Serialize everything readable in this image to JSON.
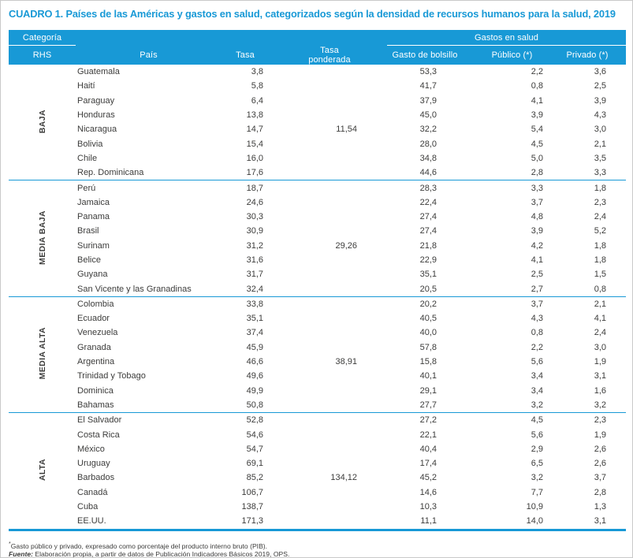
{
  "title": "CUADRO 1. Países de las Américas y gastos en salud, categorizados según la densidad de recursos humanos para la salud, 2019",
  "colors": {
    "accent": "#1899D6",
    "header_text": "#FFFFFF",
    "body_text": "#3C3C3B",
    "page_border": "#C9C9C9"
  },
  "table": {
    "header": {
      "category_label": "Categoría",
      "rhs_label": "RHS",
      "gastos_group_label": "Gastos en salud",
      "pais_label": "País",
      "tasa_label": "Tasa",
      "tasa_ponderada_label": "Tasa ponderada",
      "gasto_bolsillo_label": "Gasto de bolsillo",
      "publico_label": "Público (*)",
      "privado_label": "Privado (*)"
    },
    "groups": [
      {
        "label": "BAJA",
        "rows": [
          {
            "pais": "Guatemala",
            "tasa": "3,8",
            "tasa_ponderada": "",
            "gasto_bolsillo": "53,3",
            "publico": "2,2",
            "privado": "3,6"
          },
          {
            "pais": "Haití",
            "tasa": "5,8",
            "tasa_ponderada": "",
            "gasto_bolsillo": "41,7",
            "publico": "0,8",
            "privado": "2,5"
          },
          {
            "pais": "Paraguay",
            "tasa": "6,4",
            "tasa_ponderada": "",
            "gasto_bolsillo": "37,9",
            "publico": "4,1",
            "privado": "3,9"
          },
          {
            "pais": "Honduras",
            "tasa": "13,8",
            "tasa_ponderada": "",
            "gasto_bolsillo": "45,0",
            "publico": "3,9",
            "privado": "4,3"
          },
          {
            "pais": "Nicaragua",
            "tasa": "14,7",
            "tasa_ponderada": "11,54",
            "gasto_bolsillo": "32,2",
            "publico": "5,4",
            "privado": "3,0"
          },
          {
            "pais": "Bolivia",
            "tasa": "15,4",
            "tasa_ponderada": "",
            "gasto_bolsillo": "28,0",
            "publico": "4,5",
            "privado": "2,1"
          },
          {
            "pais": "Chile",
            "tasa": "16,0",
            "tasa_ponderada": "",
            "gasto_bolsillo": "34,8",
            "publico": "5,0",
            "privado": "3,5"
          },
          {
            "pais": "Rep. Dominicana",
            "tasa": "17,6",
            "tasa_ponderada": "",
            "gasto_bolsillo": "44,6",
            "publico": "2,8",
            "privado": "3,3"
          }
        ]
      },
      {
        "label": "MEDIA BAJA",
        "rows": [
          {
            "pais": "Perú",
            "tasa": "18,7",
            "tasa_ponderada": "",
            "gasto_bolsillo": "28,3",
            "publico": "3,3",
            "privado": "1,8"
          },
          {
            "pais": "Jamaica",
            "tasa": "24,6",
            "tasa_ponderada": "",
            "gasto_bolsillo": "22,4",
            "publico": "3,7",
            "privado": "2,3"
          },
          {
            "pais": "Panama",
            "tasa": "30,3",
            "tasa_ponderada": "",
            "gasto_bolsillo": "27,4",
            "publico": "4,8",
            "privado": "2,4"
          },
          {
            "pais": "Brasil",
            "tasa": "30,9",
            "tasa_ponderada": "",
            "gasto_bolsillo": "27,4",
            "publico": "3,9",
            "privado": "5,2"
          },
          {
            "pais": "Surinam",
            "tasa": "31,2",
            "tasa_ponderada": "29,26",
            "gasto_bolsillo": "21,8",
            "publico": "4,2",
            "privado": "1,8"
          },
          {
            "pais": "Belice",
            "tasa": "31,6",
            "tasa_ponderada": "",
            "gasto_bolsillo": "22,9",
            "publico": "4,1",
            "privado": "1,8"
          },
          {
            "pais": "Guyana",
            "tasa": "31,7",
            "tasa_ponderada": "",
            "gasto_bolsillo": "35,1",
            "publico": "2,5",
            "privado": "1,5"
          },
          {
            "pais": "San Vicente y las Granadinas",
            "tasa": "32,4",
            "tasa_ponderada": "",
            "gasto_bolsillo": "20,5",
            "publico": "2,7",
            "privado": "0,8"
          }
        ]
      },
      {
        "label": "MEDIA ALTA",
        "rows": [
          {
            "pais": "Colombia",
            "tasa": "33,8",
            "tasa_ponderada": "",
            "gasto_bolsillo": "20,2",
            "publico": "3,7",
            "privado": "2,1"
          },
          {
            "pais": "Ecuador",
            "tasa": "35,1",
            "tasa_ponderada": "",
            "gasto_bolsillo": "40,5",
            "publico": "4,3",
            "privado": "4,1"
          },
          {
            "pais": "Venezuela",
            "tasa": "37,4",
            "tasa_ponderada": "",
            "gasto_bolsillo": "40,0",
            "publico": "0,8",
            "privado": "2,4"
          },
          {
            "pais": "Granada",
            "tasa": "45,9",
            "tasa_ponderada": "",
            "gasto_bolsillo": "57,8",
            "publico": "2,2",
            "privado": "3,0"
          },
          {
            "pais": "Argentina",
            "tasa": "46,6",
            "tasa_ponderada": "38,91",
            "gasto_bolsillo": "15,8",
            "publico": "5,6",
            "privado": "1,9"
          },
          {
            "pais": "Trinidad y Tobago",
            "tasa": "49,6",
            "tasa_ponderada": "",
            "gasto_bolsillo": "40,1",
            "publico": "3,4",
            "privado": "3,1"
          },
          {
            "pais": "Dominica",
            "tasa": "49,9",
            "tasa_ponderada": "",
            "gasto_bolsillo": "29,1",
            "publico": "3,4",
            "privado": "1,6"
          },
          {
            "pais": "Bahamas",
            "tasa": "50,8",
            "tasa_ponderada": "",
            "gasto_bolsillo": "27,7",
            "publico": "3,2",
            "privado": "3,2"
          }
        ]
      },
      {
        "label": "ALTA",
        "rows": [
          {
            "pais": "El Salvador",
            "tasa": "52,8",
            "tasa_ponderada": "",
            "gasto_bolsillo": "27,2",
            "publico": "4,5",
            "privado": "2,3"
          },
          {
            "pais": "Costa Rica",
            "tasa": "54,6",
            "tasa_ponderada": "",
            "gasto_bolsillo": "22,1",
            "publico": "5,6",
            "privado": "1,9"
          },
          {
            "pais": "México",
            "tasa": "54,7",
            "tasa_ponderada": "",
            "gasto_bolsillo": "40,4",
            "publico": "2,9",
            "privado": "2,6"
          },
          {
            "pais": "Uruguay",
            "tasa": "69,1",
            "tasa_ponderada": "",
            "gasto_bolsillo": "17,4",
            "publico": "6,5",
            "privado": "2,6"
          },
          {
            "pais": "Barbados",
            "tasa": "85,2",
            "tasa_ponderada": "134,12",
            "gasto_bolsillo": "45,2",
            "publico": "3,2",
            "privado": "3,7"
          },
          {
            "pais": "Canadá",
            "tasa": "106,7",
            "tasa_ponderada": "",
            "gasto_bolsillo": "14,6",
            "publico": "7,7",
            "privado": "2,8"
          },
          {
            "pais": "Cuba",
            "tasa": "138,7",
            "tasa_ponderada": "",
            "gasto_bolsillo": "10,3",
            "publico": "10,9",
            "privado": "1,3"
          },
          {
            "pais": "EE.UU.",
            "tasa": "171,3",
            "tasa_ponderada": "",
            "gasto_bolsillo": "11,1",
            "publico": "14,0",
            "privado": "3,1"
          }
        ]
      }
    ]
  },
  "footnotes": {
    "note1_marker": "*",
    "note1": "Gasto público y privado, expresado como porcentaje del producto interno bruto (PIB).",
    "source_label": "Fuente:",
    "source_text": " Elaboración propia, a partir de datos de Publicación Indicadores Básicos 2019, OPS."
  }
}
